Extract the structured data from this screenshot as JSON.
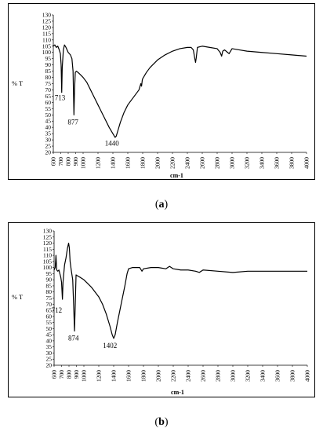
{
  "figures": [
    {
      "id": "a",
      "caption_prefix": "(",
      "caption_letter": "a",
      "caption_suffix": ")"
    },
    {
      "id": "b",
      "caption_prefix": "(",
      "caption_letter": "b",
      "caption_suffix": ")"
    }
  ],
  "chart_data": [
    {
      "type": "line",
      "title": "",
      "xlabel": "cm-1",
      "ylabel": "% T",
      "xlim": [
        600,
        4000
      ],
      "ylim": [
        20,
        130
      ],
      "x_ticks": [
        600,
        700,
        800,
        900,
        1000,
        1200,
        1400,
        1600,
        1800,
        2000,
        2200,
        2400,
        2600,
        2800,
        3000,
        3200,
        3400,
        3600,
        3800,
        4000
      ],
      "y_ticks": [
        20,
        25,
        30,
        35,
        40,
        45,
        50,
        55,
        60,
        65,
        70,
        75,
        80,
        85,
        90,
        95,
        100,
        105,
        110,
        115,
        120,
        125,
        130
      ],
      "grid": false,
      "annotations": [
        {
          "text": "713",
          "x": 713,
          "y": 68
        },
        {
          "text": "877",
          "x": 877,
          "y": 50
        },
        {
          "text": "1440",
          "x": 1440,
          "y": 33
        }
      ],
      "series": [
        {
          "values": [
            [
              600,
              105
            ],
            [
              620,
              106
            ],
            [
              640,
              104
            ],
            [
              660,
              105
            ],
            [
              680,
              102
            ],
            [
              695,
              99
            ],
            [
              705,
              90
            ],
            [
              713,
              68
            ],
            [
              720,
              88
            ],
            [
              735,
              102
            ],
            [
              750,
              106
            ],
            [
              770,
              104
            ],
            [
              800,
              100
            ],
            [
              830,
              98
            ],
            [
              850,
              95
            ],
            [
              865,
              85
            ],
            [
              877,
              50
            ],
            [
              885,
              70
            ],
            [
              895,
              84
            ],
            [
              910,
              85
            ],
            [
              950,
              83
            ],
            [
              1000,
              80
            ],
            [
              1050,
              76
            ],
            [
              1100,
              70
            ],
            [
              1150,
              64
            ],
            [
              1200,
              58
            ],
            [
              1250,
              52
            ],
            [
              1300,
              46
            ],
            [
              1350,
              40
            ],
            [
              1400,
              35
            ],
            [
              1430,
              32
            ],
            [
              1445,
              33
            ],
            [
              1470,
              38
            ],
            [
              1500,
              44
            ],
            [
              1550,
              52
            ],
            [
              1600,
              58
            ],
            [
              1650,
              62
            ],
            [
              1700,
              66
            ],
            [
              1750,
              70
            ],
            [
              1775,
              75
            ],
            [
              1785,
              73
            ],
            [
              1795,
              78
            ],
            [
              1800,
              79
            ],
            [
              1850,
              84
            ],
            [
              1900,
              88
            ],
            [
              2000,
              94
            ],
            [
              2100,
              98
            ],
            [
              2200,
              101
            ],
            [
              2300,
              103
            ],
            [
              2400,
              104
            ],
            [
              2450,
              104
            ],
            [
              2480,
              102
            ],
            [
              2500,
              95
            ],
            [
              2510,
              92
            ],
            [
              2520,
              96
            ],
            [
              2535,
              104
            ],
            [
              2600,
              105
            ],
            [
              2700,
              104
            ],
            [
              2800,
              103
            ],
            [
              2840,
              100
            ],
            [
              2860,
              97
            ],
            [
              2875,
              101
            ],
            [
              2900,
              102
            ],
            [
              2940,
              100
            ],
            [
              2960,
              99
            ],
            [
              3000,
              103
            ],
            [
              3100,
              102
            ],
            [
              3200,
              101
            ],
            [
              3400,
              100
            ],
            [
              3600,
              99
            ],
            [
              3800,
              98
            ],
            [
              4000,
              97
            ]
          ]
        }
      ]
    },
    {
      "type": "line",
      "title": "",
      "xlabel": "cm-1",
      "ylabel": "% T",
      "xlim": [
        600,
        4000
      ],
      "ylim": [
        20,
        130
      ],
      "x_ticks": [
        600,
        700,
        800,
        900,
        1000,
        1200,
        1400,
        1600,
        1800,
        2000,
        2200,
        2400,
        2600,
        2800,
        3000,
        3200,
        3400,
        3600,
        3800,
        4000
      ],
      "y_ticks": [
        20,
        25,
        30,
        35,
        40,
        45,
        50,
        55,
        60,
        65,
        70,
        75,
        80,
        85,
        90,
        95,
        100,
        105,
        110,
        115,
        120,
        125,
        130
      ],
      "grid": false,
      "annotations": [
        {
          "text": "712",
          "x": 712,
          "y": 72
        },
        {
          "text": "874",
          "x": 874,
          "y": 48
        },
        {
          "text": "1402",
          "x": 1402,
          "y": 42
        }
      ],
      "series": [
        {
          "values": [
            [
              600,
              98
            ],
            [
              615,
              100
            ],
            [
              625,
              110
            ],
            [
              635,
              98
            ],
            [
              650,
              97
            ],
            [
              665,
              98
            ],
            [
              690,
              92
            ],
            [
              700,
              88
            ],
            [
              712,
              74
            ],
            [
              720,
              88
            ],
            [
              740,
              102
            ],
            [
              760,
              108
            ],
            [
              780,
              116
            ],
            [
              795,
              120
            ],
            [
              805,
              116
            ],
            [
              815,
              105
            ],
            [
              830,
              98
            ],
            [
              850,
              90
            ],
            [
              862,
              70
            ],
            [
              874,
              48
            ],
            [
              882,
              65
            ],
            [
              895,
              94
            ],
            [
              920,
              93
            ],
            [
              950,
              92
            ],
            [
              1000,
              90
            ],
            [
              1050,
              87
            ],
            [
              1100,
              84
            ],
            [
              1150,
              80
            ],
            [
              1200,
              76
            ],
            [
              1250,
              70
            ],
            [
              1300,
              62
            ],
            [
              1350,
              52
            ],
            [
              1380,
              45
            ],
            [
              1400,
              42
            ],
            [
              1420,
              45
            ],
            [
              1450,
              55
            ],
            [
              1500,
              70
            ],
            [
              1550,
              85
            ],
            [
              1580,
              95
            ],
            [
              1600,
              99
            ],
            [
              1650,
              100
            ],
            [
              1700,
              100
            ],
            [
              1750,
              100
            ],
            [
              1780,
              97
            ],
            [
              1800,
              99
            ],
            [
              1900,
              100
            ],
            [
              2000,
              100
            ],
            [
              2100,
              99
            ],
            [
              2150,
              101
            ],
            [
              2200,
              99
            ],
            [
              2300,
              98
            ],
            [
              2400,
              98
            ],
            [
              2500,
              97
            ],
            [
              2550,
              96
            ],
            [
              2600,
              98
            ],
            [
              2800,
              97
            ],
            [
              3000,
              96
            ],
            [
              3200,
              97
            ],
            [
              3400,
              97
            ],
            [
              3600,
              97
            ],
            [
              3800,
              97
            ],
            [
              4000,
              97
            ]
          ]
        }
      ]
    }
  ]
}
